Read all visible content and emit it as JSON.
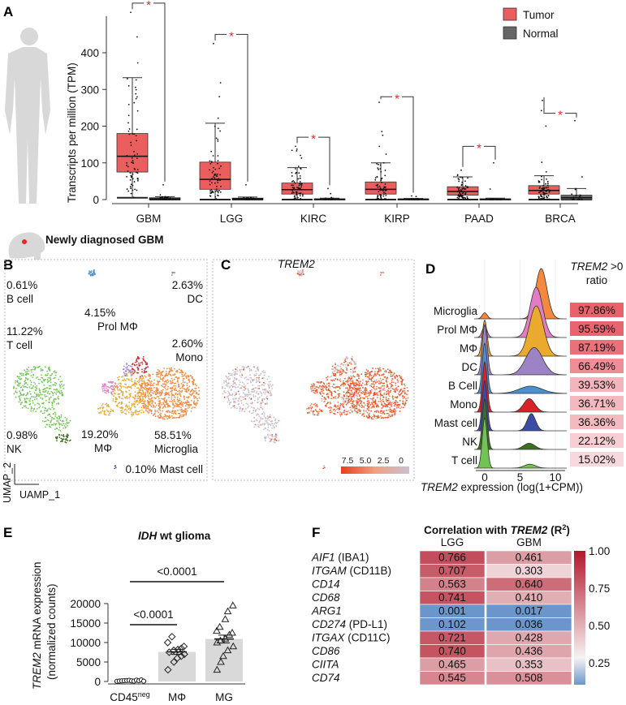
{
  "panel_labels": [
    "A",
    "B",
    "C",
    "D",
    "E",
    "F"
  ],
  "colors": {
    "tumor": "#ea5e5e",
    "normal": "#666666",
    "sig": "#e8262a"
  },
  "chart_data": [
    {
      "type": "box",
      "ylabel": "Transcripts per million (TPM)",
      "yticks": [
        0,
        100,
        200,
        300,
        400
      ],
      "ylim": [
        0,
        500
      ],
      "categories": [
        "GBM",
        "LGG",
        "KIRC",
        "KIRP",
        "PAAD",
        "BRCA"
      ],
      "legend": [
        "Tumor",
        "Normal"
      ],
      "legend_position": "top-right",
      "significance_marker": "*",
      "tumor": [
        {
          "q1": 75,
          "median": 118,
          "q3": 180,
          "lo": 5,
          "hi": 332,
          "max": 510
        },
        {
          "q1": 28,
          "median": 55,
          "q3": 102,
          "lo": 0,
          "hi": 208,
          "max": 425
        },
        {
          "q1": 15,
          "median": 27,
          "q3": 45,
          "lo": 0,
          "hi": 87,
          "max": 145
        },
        {
          "q1": 15,
          "median": 28,
          "q3": 48,
          "lo": 0,
          "hi": 100,
          "max": 265
        },
        {
          "q1": 12,
          "median": 22,
          "q3": 35,
          "lo": 0,
          "hi": 62,
          "max": 80
        },
        {
          "q1": 15,
          "median": 25,
          "q3": 38,
          "lo": 0,
          "hi": 65,
          "max": 270
        }
      ],
      "normal": [
        {
          "q1": 0,
          "median": 2,
          "q3": 5,
          "lo": 0,
          "hi": 8,
          "max": 40
        },
        {
          "q1": 0,
          "median": 2,
          "q3": 4,
          "lo": 0,
          "hi": 7,
          "max": 40
        },
        {
          "q1": 0,
          "median": 1,
          "q3": 2,
          "lo": 0,
          "hi": 4,
          "max": 30
        },
        {
          "q1": 0,
          "median": 1,
          "q3": 2,
          "lo": 0,
          "hi": 3,
          "max": 10
        },
        {
          "q1": 0,
          "median": 1,
          "q3": 2,
          "lo": 0,
          "hi": 4,
          "max": 100
        },
        {
          "q1": 0,
          "median": 5,
          "q3": 12,
          "lo": 0,
          "hi": 30,
          "max": 215
        }
      ],
      "bracket_heights": [
        535,
        450,
        170,
        280,
        145,
        235
      ]
    },
    {
      "type": "scatter",
      "title": "Newly diagnosed GBM",
      "xlabel": "UAMP_1",
      "ylabel": "UMAP_2",
      "clusters": [
        {
          "pct": "0.61%",
          "name": "B cell",
          "color": "#4a8fd0"
        },
        {
          "pct": "2.63%",
          "name": "DC",
          "color": "#9b83c6"
        },
        {
          "pct": "4.15%",
          "name": "Prol MΦ",
          "color": "#e27dc4"
        },
        {
          "pct": "11.22%",
          "name": "T cell",
          "color": "#72c356"
        },
        {
          "pct": "2.60%",
          "name": "Mono",
          "color": "#d92128"
        },
        {
          "pct": "19.20%",
          "name": "MΦ",
          "color": "#eaaa2e"
        },
        {
          "pct": "58.51%",
          "name": "Microglia",
          "color": "#f3893e"
        },
        {
          "pct": "0.98%",
          "name": "NK",
          "color": "#3e6e22"
        },
        {
          "pct": "0.10%",
          "name": "Mast cell",
          "color": "#3b4ba3"
        }
      ]
    },
    {
      "type": "scatter",
      "title": "TREM2",
      "colorbar_ticks": [
        "7.5",
        "5.0",
        "2.5",
        "0"
      ],
      "colorbar_colors": [
        "#e8401c",
        "#f0a080",
        "#c8c0d0"
      ]
    },
    {
      "type": "ridge",
      "xlabel_gene": "TREM2",
      "xlabel": " expression (log(1+CPM))",
      "xticks": [
        0,
        5,
        10
      ],
      "ratio_header_gene": "TREM2",
      "ratio_header_suffix": " >0",
      "ratio_header_line2": "ratio",
      "rows": [
        {
          "name": "Microglia",
          "color": "#f3893e",
          "ratio": "97.86%",
          "ratio_value": 97.86,
          "w0": 0.05,
          "mode": 8.0,
          "sd": 0.8
        },
        {
          "name": "Prol MΦ",
          "color": "#e27dc4",
          "ratio": "95.59%",
          "ratio_value": 95.59,
          "w0": 0.08,
          "mode": 7.3,
          "sd": 0.9
        },
        {
          "name": "MΦ",
          "color": "#eaaa2e",
          "ratio": "87.19%",
          "ratio_value": 87.19,
          "w0": 0.2,
          "mode": 7.3,
          "sd": 1.0
        },
        {
          "name": "DC",
          "color": "#9b83c6",
          "ratio": "66.49%",
          "ratio_value": 66.49,
          "w0": 0.35,
          "mode": 7.0,
          "sd": 1.2
        },
        {
          "name": "B Cell",
          "color": "#4a8fd0",
          "ratio": "39.53%",
          "ratio_value": 39.53,
          "w0": 0.6,
          "mode": 6.5,
          "sd": 1.6
        },
        {
          "name": "Mono",
          "color": "#d92128",
          "ratio": "36.71%",
          "ratio_value": 36.71,
          "w0": 0.62,
          "mode": 6.3,
          "sd": 0.8
        },
        {
          "name": "Mast cell",
          "color": "#3b4ba3",
          "ratio": "36.36%",
          "ratio_value": 36.36,
          "w0": 0.63,
          "mode": 6.6,
          "sd": 0.6
        },
        {
          "name": "NK",
          "color": "#3e6e22",
          "ratio": "22.12%",
          "ratio_value": 22.12,
          "w0": 0.78,
          "mode": 6.3,
          "sd": 0.8
        },
        {
          "name": "T cell",
          "color": "#72c356",
          "ratio": "15.02%",
          "ratio_value": 15.02,
          "w0": 0.85,
          "mode": 6.4,
          "sd": 0.8
        }
      ]
    },
    {
      "type": "bar",
      "title_gene": "IDH",
      "title": " wt glioma",
      "ylabel_gene": "TREM2",
      "ylabel": " mRNA expression",
      "ylabel2": "(normalized counts)",
      "yticks": [
        0,
        5000,
        10000,
        15000,
        20000
      ],
      "ylim": [
        0,
        20000
      ],
      "groups": [
        {
          "label": "CD45",
          "sup": "neg",
          "mean": 200,
          "sem": 60,
          "marker": "circle",
          "points": [
            50,
            100,
            150,
            200,
            250,
            300,
            150,
            100,
            350,
            200,
            400,
            80
          ]
        },
        {
          "label": "MΦ",
          "sup": "",
          "mean": 7600,
          "sem": 650,
          "marker": "diamond",
          "points": [
            3000,
            5000,
            6000,
            6500,
            7000,
            7500,
            8000,
            8200,
            8500,
            9000,
            10000,
            11500
          ]
        },
        {
          "label": "MG",
          "sup": "",
          "mean": 10900,
          "sem": 1000,
          "marker": "triangle",
          "points": [
            3000,
            5000,
            6500,
            8000,
            9000,
            10000,
            10500,
            11000,
            12000,
            12500,
            13000,
            14000,
            16000,
            18000,
            19500
          ]
        }
      ],
      "comparisons": [
        {
          "from": 0,
          "to": 2,
          "label": "<0.0001"
        },
        {
          "from": 0,
          "to": 1,
          "label": "<0.0001"
        }
      ]
    },
    {
      "type": "heatmap",
      "title": "Correlation with ",
      "title_gene": "TREM2",
      "title_suffix": " (R",
      "title_sup": "2",
      "title_close": ")",
      "columns": [
        "LGG",
        "GBM"
      ],
      "rows": [
        {
          "gene": "AIF1",
          "alias": " (IBA1)",
          "values": [
            0.766,
            0.461
          ],
          "labels": [
            "0.766",
            "0.461"
          ]
        },
        {
          "gene": "ITGAM",
          "alias": " (CD11B)",
          "values": [
            0.707,
            0.303
          ],
          "labels": [
            "0.707",
            "0.303"
          ]
        },
        {
          "gene": "CD14",
          "alias": "",
          "values": [
            0.563,
            0.64
          ],
          "labels": [
            "0.563",
            "0.640"
          ]
        },
        {
          "gene": "CD68",
          "alias": "",
          "values": [
            0.741,
            0.41
          ],
          "labels": [
            "0.741",
            "0.410"
          ]
        },
        {
          "gene": "ARG1",
          "alias": "",
          "values": [
            0.001,
            0.017
          ],
          "labels": [
            "0.001",
            "0.017"
          ]
        },
        {
          "gene": "CD274",
          "alias": " (PD-L1)",
          "values": [
            0.102,
            0.036
          ],
          "labels": [
            "0.102",
            "0.036"
          ]
        },
        {
          "gene": "ITGAX",
          "alias": " (CD11C)",
          "values": [
            0.721,
            0.428
          ],
          "labels": [
            "0.721",
            "0.428"
          ]
        },
        {
          "gene": "CD86",
          "alias": "",
          "values": [
            0.74,
            0.436
          ],
          "labels": [
            "0.740",
            "0.436"
          ]
        },
        {
          "gene": "CIITA",
          "alias": "",
          "values": [
            0.465,
            0.353
          ],
          "labels": [
            "0.465",
            "0.353"
          ]
        },
        {
          "gene": "CD74",
          "alias": "",
          "values": [
            0.545,
            0.508
          ],
          "labels": [
            "0.545",
            "0.508"
          ]
        }
      ],
      "colorbar_ticks": [
        {
          "label": "1.00",
          "value": 1.0
        },
        {
          "label": "0.75",
          "value": 0.75
        },
        {
          "label": "0.50",
          "value": 0.5
        },
        {
          "label": "0.25",
          "value": 0.25
        }
      ],
      "colors": {
        "low": "#6a96cc",
        "mid": "#f7f2f2",
        "high": "#b2182b"
      }
    }
  ]
}
